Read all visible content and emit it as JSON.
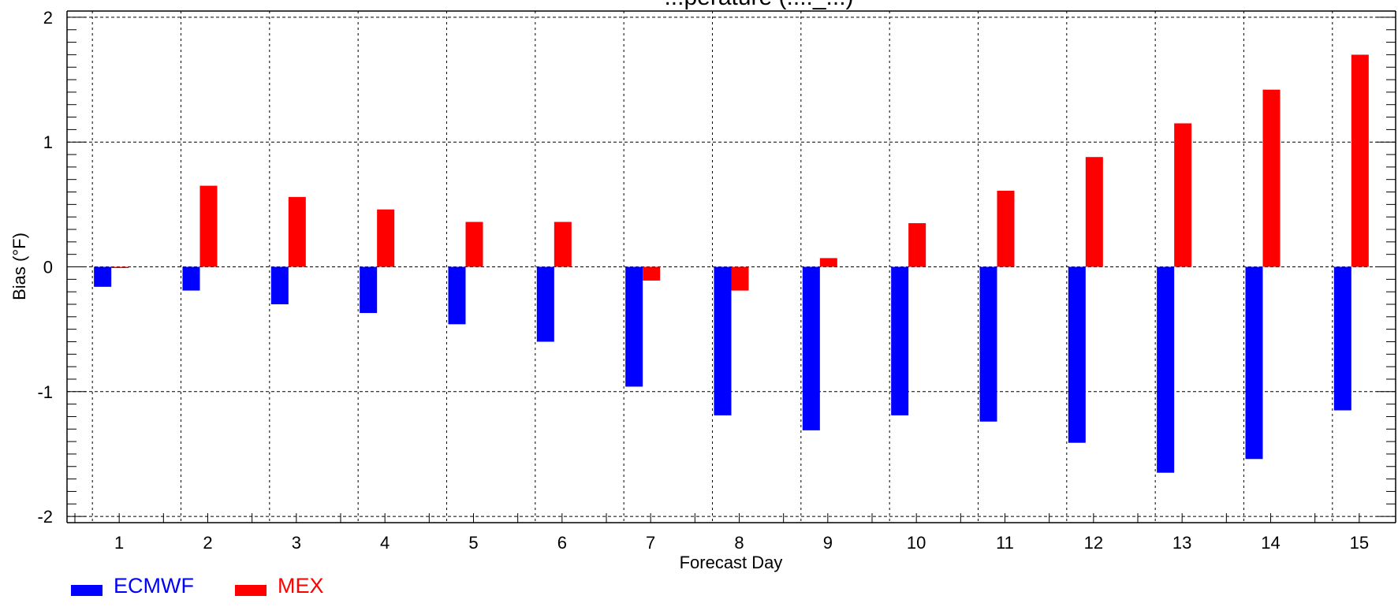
{
  "chart_data": {
    "type": "bar",
    "title": "...perature (...._...)",
    "xlabel": "Forecast Day",
    "ylabel": "Bias (°F)",
    "categories": [
      "1",
      "2",
      "3",
      "4",
      "5",
      "6",
      "7",
      "8",
      "9",
      "10",
      "11",
      "12",
      "13",
      "14",
      "15"
    ],
    "y_ticks": [
      "2",
      "1",
      "0",
      "-1",
      "-2"
    ],
    "ylim": [
      -2.05,
      2.05
    ],
    "grid": true,
    "legend_position": "bottom-left",
    "series": [
      {
        "name": "ECMWF",
        "color": "#0000ff",
        "values": [
          -0.16,
          -0.19,
          -0.3,
          -0.37,
          -0.46,
          -0.6,
          -0.96,
          -1.19,
          -1.31,
          -1.19,
          -1.24,
          -1.41,
          -1.65,
          -1.54,
          -1.15
        ]
      },
      {
        "name": "MEX",
        "color": "#ff0000",
        "values": [
          0.0,
          0.65,
          0.56,
          0.46,
          0.36,
          0.36,
          -0.11,
          -0.19,
          0.07,
          0.35,
          0.61,
          0.88,
          1.15,
          1.42,
          1.7
        ]
      }
    ]
  }
}
